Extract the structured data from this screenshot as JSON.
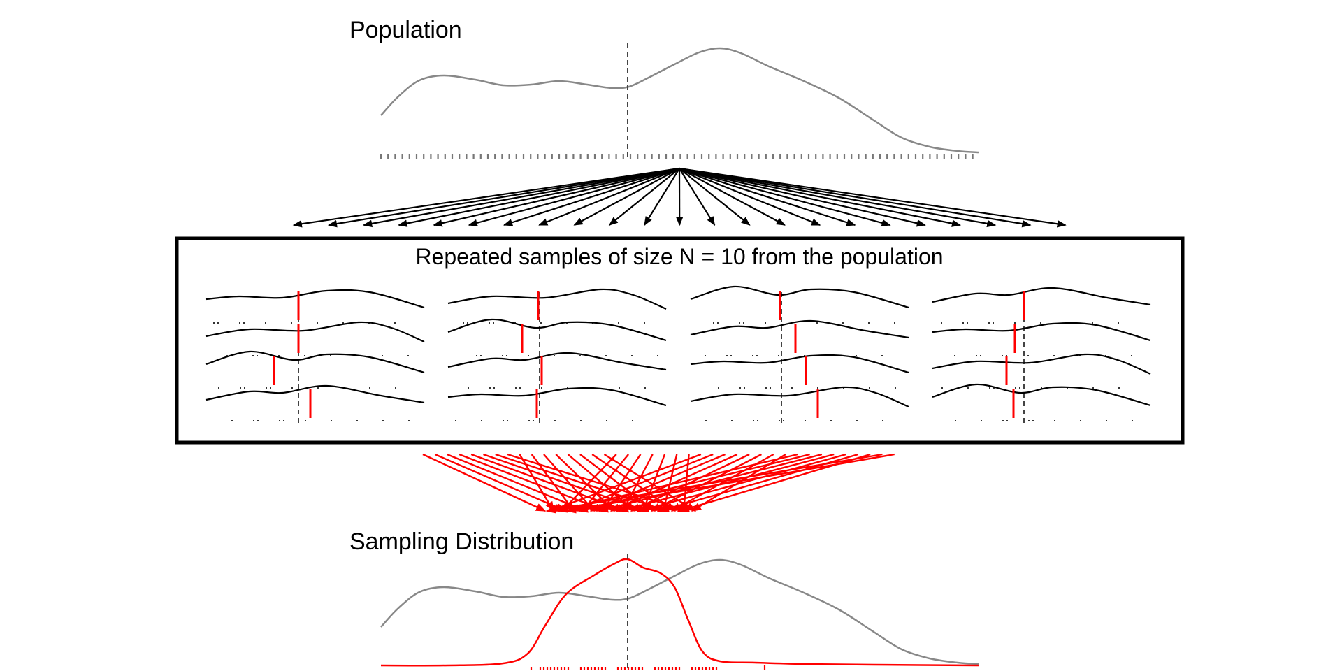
{
  "population": {
    "title": "Population",
    "curve_color": "#888888",
    "rug_color": "#777777"
  },
  "samples_box": {
    "title": "Repeated samples of size N = 10 from the population",
    "curve_color": "#000000",
    "mean_color": "#ff0000"
  },
  "sampling_distribution": {
    "title": "Sampling Distribution",
    "curve_color": "#ff0000",
    "population_curve_color": "#888888"
  },
  "colors": {
    "arrow_down": "#000000",
    "arrow_up": "#ff0000",
    "reference_line": "#444444",
    "frame": "#000000"
  }
}
